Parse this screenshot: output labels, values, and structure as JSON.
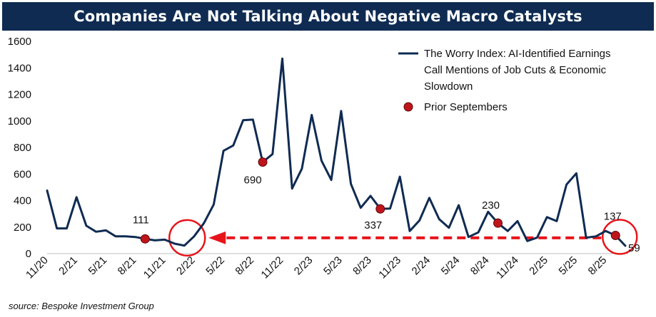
{
  "title": "Companies Are Not Talking About Negative Macro Catalysts",
  "source": "source: Bespoke Investment Group",
  "colors": {
    "title_bg": "#0f2b52",
    "line": "#0f2b52",
    "marker": "#c0141b",
    "annotation": "#e8141b"
  },
  "chart_data": {
    "type": "line",
    "title": "Companies Are Not Talking About Negative Macro Catalysts",
    "xlabel": "",
    "ylabel": "",
    "ylim": [
      0,
      1600
    ],
    "yticks": [
      0,
      200,
      400,
      600,
      800,
      1000,
      1200,
      1400,
      1600
    ],
    "xtick_labels": [
      "11/20",
      "2/21",
      "5/21",
      "8/21",
      "11/21",
      "2/22",
      "5/22",
      "8/22",
      "11/22",
      "2/23",
      "5/23",
      "8/23",
      "11/23",
      "2/24",
      "5/24",
      "8/24",
      "11/24",
      "2/25",
      "5/25",
      "8/25"
    ],
    "series": [
      {
        "name": "The Worry Index: AI-Identified Earnings Call Mentions of Job Cuts & Economic Slowdown",
        "legend_lines": [
          "The Worry Index: AI-Identified Earnings",
          "Call Mentions of Job Cuts & Economic",
          "Slowdown"
        ],
        "values": [
          475,
          190,
          190,
          425,
          210,
          165,
          175,
          130,
          130,
          125,
          111,
          100,
          105,
          75,
          60,
          130,
          230,
          370,
          775,
          815,
          1005,
          1010,
          690,
          750,
          1470,
          490,
          640,
          1045,
          700,
          555,
          1075,
          525,
          345,
          435,
          337,
          340,
          580,
          170,
          250,
          420,
          260,
          195,
          365,
          125,
          160,
          315,
          230,
          170,
          245,
          95,
          120,
          275,
          245,
          520,
          605,
          120,
          130,
          170,
          137,
          59
        ]
      }
    ],
    "highlights": {
      "name": "Prior Septembers",
      "points": [
        {
          "index": 10,
          "label": "111"
        },
        {
          "index": 22,
          "label": "690"
        },
        {
          "index": 34,
          "label": "337"
        },
        {
          "index": 46,
          "label": "230"
        },
        {
          "index": 58,
          "label": "137"
        }
      ]
    },
    "final_label": {
      "index": 59,
      "label": "59"
    },
    "annotation": "dashed red arrow from latest value back to the early-2022 low, both circled"
  }
}
